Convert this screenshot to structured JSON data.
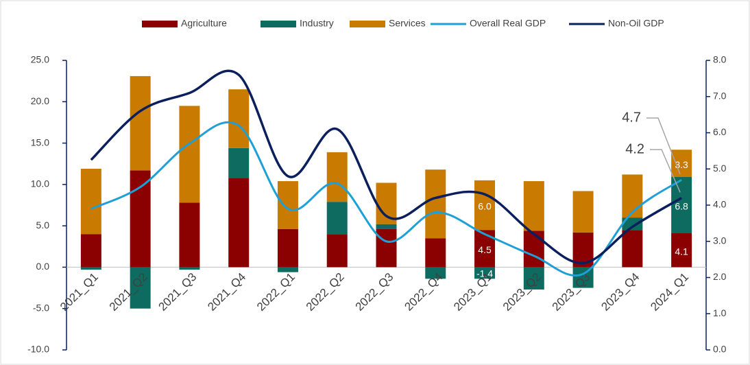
{
  "chart_data": {
    "type": "bar",
    "categories": [
      "2021_Q1",
      "2021_Q2",
      "2021_Q3",
      "2021_Q4",
      "2022_Q1",
      "2022_Q2",
      "2022_Q3",
      "2022_Q4",
      "2023_Q1",
      "2023_Q2",
      "2023_Q3",
      "2023_Q4",
      "2024_Q1"
    ],
    "series": [
      {
        "name": "Agriculture",
        "type": "bar",
        "color": "#8b0000",
        "values": [
          4.0,
          11.7,
          7.8,
          10.8,
          4.6,
          4.0,
          4.6,
          3.5,
          4.5,
          4.4,
          4.2,
          4.5,
          4.1
        ],
        "value_labels": [
          null,
          null,
          null,
          null,
          null,
          null,
          null,
          null,
          "4.5",
          null,
          null,
          null,
          "4.1"
        ]
      },
      {
        "name": "Industry",
        "type": "bar",
        "color": "#0e6b5f",
        "values": [
          -0.3,
          -5.0,
          -0.3,
          3.6,
          -0.6,
          3.9,
          0.6,
          -1.4,
          -1.4,
          -2.7,
          -2.5,
          1.5,
          6.8
        ],
        "value_labels": [
          null,
          null,
          null,
          null,
          null,
          null,
          null,
          null,
          "-1.4",
          null,
          null,
          null,
          "6.8"
        ]
      },
      {
        "name": "Services",
        "type": "bar",
        "color": "#c97a00",
        "values": [
          7.9,
          11.4,
          11.7,
          7.1,
          5.8,
          6.0,
          5.0,
          8.3,
          6.0,
          6.0,
          5.0,
          5.2,
          3.3
        ],
        "value_labels": [
          null,
          null,
          null,
          null,
          null,
          null,
          null,
          null,
          "6.0",
          null,
          null,
          null,
          "3.3"
        ]
      },
      {
        "name": "Overall Real GDP",
        "type": "line",
        "axis": "y2",
        "color": "#1e9fd6",
        "values": [
          3.9,
          4.5,
          5.7,
          6.2,
          3.9,
          4.6,
          3.0,
          3.8,
          3.2,
          2.6,
          2.1,
          3.8,
          4.7
        ],
        "value_labels": [
          null,
          null,
          null,
          null,
          null,
          null,
          null,
          null,
          null,
          null,
          null,
          null,
          "4.7"
        ]
      },
      {
        "name": "Non-Oil GDP",
        "type": "line",
        "axis": "y2",
        "color": "#0b1f5c",
        "values": [
          5.25,
          6.6,
          7.1,
          7.6,
          4.8,
          6.1,
          3.7,
          4.2,
          4.3,
          3.2,
          2.4,
          3.4,
          4.2
        ],
        "value_labels": [
          null,
          null,
          null,
          null,
          null,
          null,
          null,
          null,
          null,
          null,
          null,
          null,
          "4.2"
        ]
      }
    ],
    "ylim": [
      -10,
      25
    ],
    "yticks": [
      {
        "value": -10,
        "label": "-10.0"
      },
      {
        "value": -5,
        "label": "-5.0"
      },
      {
        "value": 0,
        "label": "0.0"
      },
      {
        "value": 5,
        "label": "5.0"
      },
      {
        "value": 10,
        "label": "10.0"
      },
      {
        "value": 15,
        "label": "15.0"
      },
      {
        "value": 20,
        "label": "20.0"
      },
      {
        "value": 25,
        "label": "25.0"
      }
    ],
    "y2lim": [
      0,
      8
    ],
    "y2ticks": [
      {
        "value": 0,
        "label": "0.0"
      },
      {
        "value": 1,
        "label": "1.0"
      },
      {
        "value": 2,
        "label": "2.0"
      },
      {
        "value": 3,
        "label": "3.0"
      },
      {
        "value": 4,
        "label": "4.0"
      },
      {
        "value": 5,
        "label": "5.0"
      },
      {
        "value": 6,
        "label": "6.0"
      },
      {
        "value": 7,
        "label": "7.0"
      },
      {
        "value": 8,
        "label": "8.0"
      }
    ],
    "legend": "top"
  }
}
